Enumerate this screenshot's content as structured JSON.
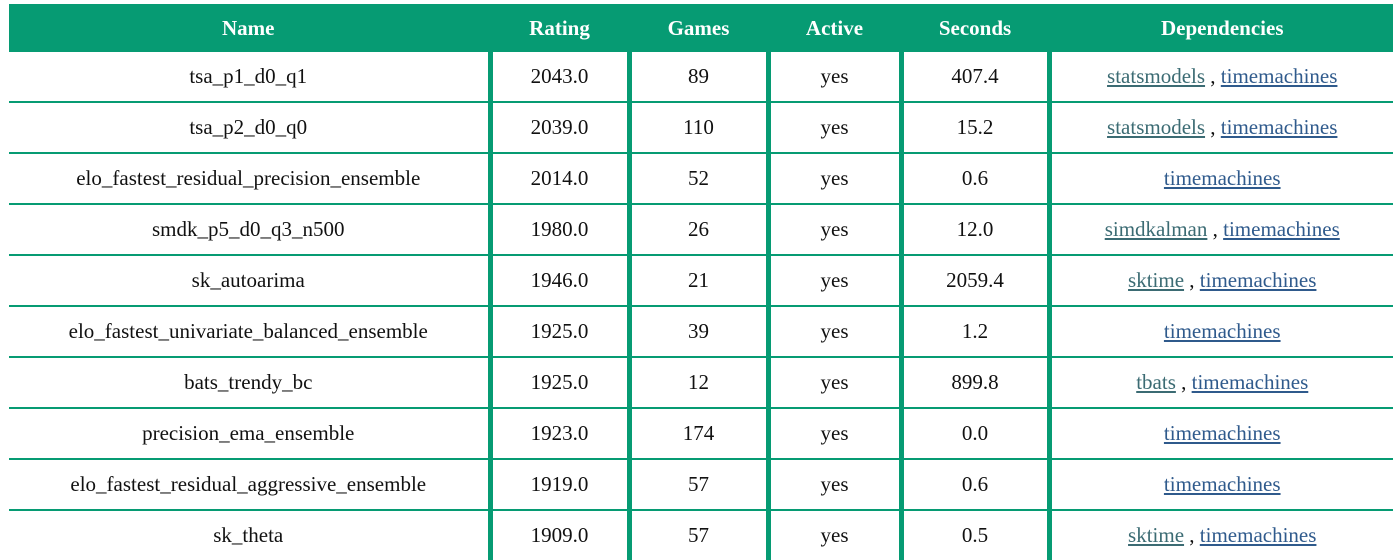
{
  "columns": {
    "name": "Name",
    "rating": "Rating",
    "games": "Games",
    "active": "Active",
    "seconds": "Seconds",
    "dependencies": "Dependencies"
  },
  "separator": ",",
  "colors": {
    "header_bg": "#069b73",
    "link": "#2f5a8c",
    "link_primary": "#3b6b73"
  },
  "rows": [
    {
      "name": "tsa_p1_d0_q1",
      "rating": "2043.0",
      "games": "89",
      "active": "yes",
      "seconds": "407.4",
      "deps": [
        "statsmodels",
        "timemachines"
      ]
    },
    {
      "name": "tsa_p2_d0_q0",
      "rating": "2039.0",
      "games": "110",
      "active": "yes",
      "seconds": "15.2",
      "deps": [
        "statsmodels",
        "timemachines"
      ]
    },
    {
      "name": "elo_fastest_residual_precision_ensemble",
      "rating": "2014.0",
      "games": "52",
      "active": "yes",
      "seconds": "0.6",
      "deps": [
        "timemachines"
      ]
    },
    {
      "name": "smdk_p5_d0_q3_n500",
      "rating": "1980.0",
      "games": "26",
      "active": "yes",
      "seconds": "12.0",
      "deps": [
        "simdkalman",
        "timemachines"
      ]
    },
    {
      "name": "sk_autoarima",
      "rating": "1946.0",
      "games": "21",
      "active": "yes",
      "seconds": "2059.4",
      "deps": [
        "sktime",
        "timemachines"
      ]
    },
    {
      "name": "elo_fastest_univariate_balanced_ensemble",
      "rating": "1925.0",
      "games": "39",
      "active": "yes",
      "seconds": "1.2",
      "deps": [
        "timemachines"
      ]
    },
    {
      "name": "bats_trendy_bc",
      "rating": "1925.0",
      "games": "12",
      "active": "yes",
      "seconds": "899.8",
      "deps": [
        "tbats",
        "timemachines"
      ]
    },
    {
      "name": "precision_ema_ensemble",
      "rating": "1923.0",
      "games": "174",
      "active": "yes",
      "seconds": "0.0",
      "deps": [
        "timemachines"
      ]
    },
    {
      "name": "elo_fastest_residual_aggressive_ensemble",
      "rating": "1919.0",
      "games": "57",
      "active": "yes",
      "seconds": "0.6",
      "deps": [
        "timemachines"
      ]
    },
    {
      "name": "sk_theta",
      "rating": "1909.0",
      "games": "57",
      "active": "yes",
      "seconds": "0.5",
      "deps": [
        "sktime",
        "timemachines"
      ]
    }
  ]
}
